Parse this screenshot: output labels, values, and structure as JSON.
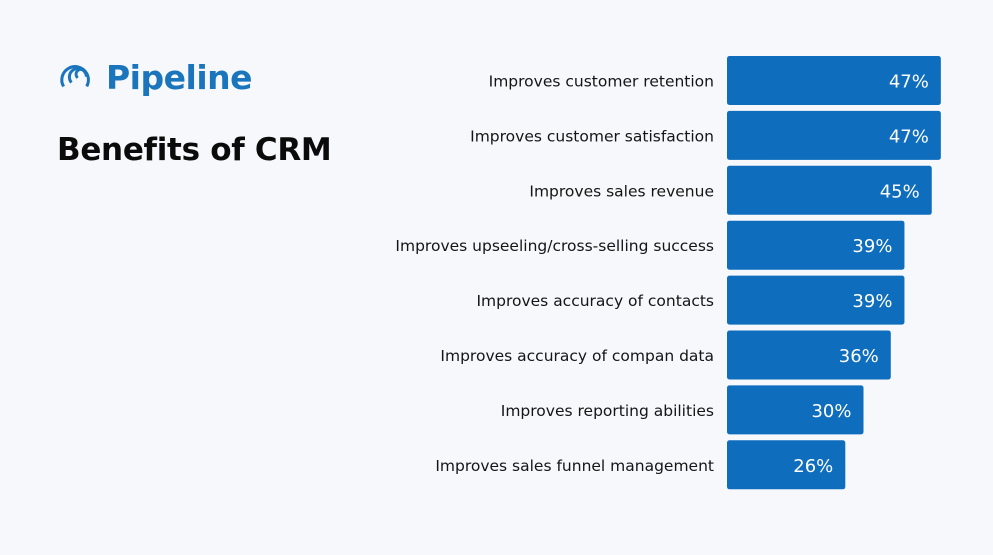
{
  "brand": {
    "name": "Pipeline",
    "color": "#1b75bc"
  },
  "title": "Benefits of CRM",
  "chart_data": {
    "type": "bar",
    "orientation": "horizontal",
    "bar_color": "#0f6dbd",
    "label_color": "#ffffff",
    "unit": "%",
    "categories": [
      "Improves customer retention",
      "Improves customer satisfaction",
      "Improves sales revenue",
      "Improves upseeling/cross-selling success",
      "Improves accuracy of contacts",
      "Improves accuracy of compan data",
      "Improves reporting abilities",
      "Improves sales funnel management"
    ],
    "values": [
      47,
      47,
      45,
      39,
      39,
      36,
      30,
      26
    ],
    "value_labels": [
      "47%",
      "47%",
      "45%",
      "39%",
      "39%",
      "36%",
      "30%",
      "26%"
    ]
  }
}
